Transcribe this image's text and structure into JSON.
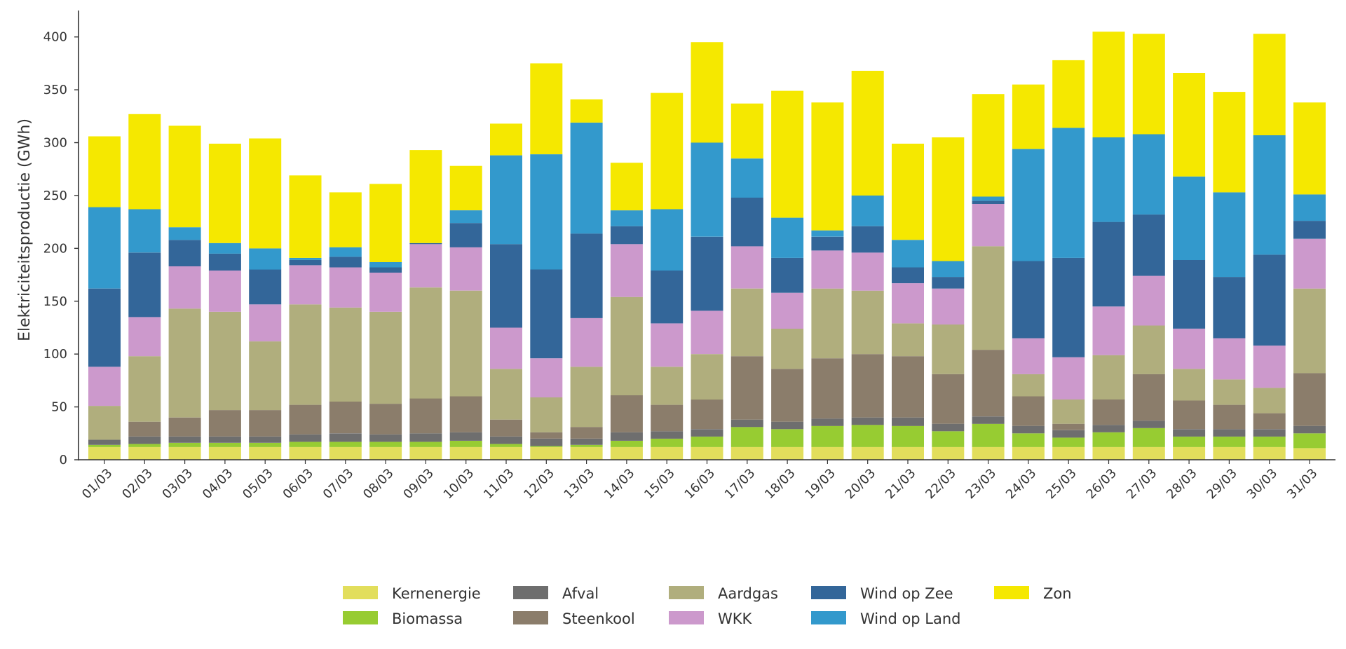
{
  "chart_data": {
    "type": "bar",
    "stacked": true,
    "title": "",
    "xlabel": "",
    "ylabel": "Elektriciteitsproductie (GWh)",
    "ylim": [
      0,
      425
    ],
    "yticks": [
      0,
      50,
      100,
      150,
      200,
      250,
      300,
      350,
      400
    ],
    "grid": false,
    "legend_position": "bottom",
    "categories": [
      "01/03",
      "02/03",
      "03/03",
      "04/03",
      "05/03",
      "06/03",
      "07/03",
      "08/03",
      "09/03",
      "10/03",
      "11/03",
      "12/03",
      "13/03",
      "14/03",
      "15/03",
      "16/03",
      "17/03",
      "18/03",
      "19/03",
      "20/03",
      "21/03",
      "22/03",
      "23/03",
      "24/03",
      "25/03",
      "26/03",
      "27/03",
      "28/03",
      "29/03",
      "30/03",
      "31/03"
    ],
    "series": [
      {
        "name": "Kernenergie",
        "color": "#e2de5c",
        "values": [
          12,
          12,
          12,
          12,
          12,
          12,
          12,
          12,
          12,
          12,
          12,
          12,
          12,
          12,
          12,
          12,
          12,
          12,
          12,
          12,
          12,
          12,
          12,
          12,
          12,
          12,
          12,
          12,
          12,
          12,
          11
        ]
      },
      {
        "name": "Biomassa",
        "color": "#97cc32",
        "values": [
          2,
          3,
          4,
          4,
          4,
          5,
          5,
          5,
          5,
          6,
          3,
          1,
          2,
          6,
          8,
          10,
          19,
          17,
          20,
          21,
          20,
          15,
          22,
          13,
          9,
          14,
          18,
          10,
          10,
          10,
          14
        ]
      },
      {
        "name": "Afval",
        "color": "#6e6e6e",
        "values": [
          5,
          7,
          6,
          6,
          6,
          7,
          8,
          7,
          8,
          8,
          7,
          7,
          6,
          8,
          7,
          7,
          7,
          7,
          7,
          7,
          8,
          7,
          7,
          7,
          7,
          7,
          7,
          7,
          7,
          7,
          7
        ]
      },
      {
        "name": "Steenkool",
        "color": "#8b7d6b",
        "values": [
          0,
          14,
          18,
          25,
          25,
          28,
          30,
          29,
          33,
          34,
          16,
          6,
          11,
          35,
          25,
          28,
          60,
          50,
          57,
          60,
          58,
          47,
          63,
          28,
          6,
          24,
          44,
          27,
          23,
          15,
          50
        ]
      },
      {
        "name": "Aardgas",
        "color": "#b0ae7d",
        "values": [
          32,
          62,
          103,
          93,
          65,
          95,
          89,
          87,
          105,
          100,
          48,
          33,
          57,
          93,
          36,
          43,
          64,
          38,
          66,
          60,
          31,
          47,
          98,
          21,
          23,
          42,
          46,
          30,
          24,
          24,
          80
        ]
      },
      {
        "name": "WKK",
        "color": "#cc99cc",
        "values": [
          37,
          37,
          40,
          39,
          35,
          37,
          38,
          37,
          41,
          41,
          39,
          37,
          46,
          50,
          41,
          41,
          40,
          34,
          36,
          36,
          38,
          34,
          40,
          34,
          40,
          46,
          47,
          38,
          39,
          40,
          47
        ]
      },
      {
        "name": "Wind op Zee",
        "color": "#336699",
        "values": [
          74,
          61,
          25,
          16,
          33,
          5,
          10,
          5,
          1,
          23,
          79,
          84,
          80,
          17,
          50,
          70,
          46,
          33,
          13,
          25,
          15,
          11,
          3,
          73,
          94,
          80,
          58,
          65,
          58,
          86,
          17
        ]
      },
      {
        "name": "Wind op Land",
        "color": "#3399cc",
        "values": [
          77,
          41,
          12,
          10,
          20,
          2,
          9,
          5,
          0,
          12,
          84,
          109,
          105,
          15,
          58,
          89,
          37,
          38,
          6,
          29,
          26,
          15,
          4,
          106,
          123,
          80,
          76,
          79,
          80,
          113,
          25
        ]
      },
      {
        "name": "Zon",
        "color": "#f5e800",
        "values": [
          67,
          90,
          96,
          94,
          104,
          78,
          52,
          74,
          88,
          42,
          30,
          86,
          22,
          45,
          110,
          95,
          52,
          120,
          121,
          118,
          91,
          117,
          97,
          61,
          64,
          100,
          95,
          98,
          95,
          96,
          87
        ]
      }
    ]
  },
  "legend": {
    "items": [
      {
        "label": "Kernenergie",
        "color": "#e2de5c"
      },
      {
        "label": "Biomassa",
        "color": "#97cc32"
      },
      {
        "label": "Afval",
        "color": "#6e6e6e"
      },
      {
        "label": "Steenkool",
        "color": "#8b7d6b"
      },
      {
        "label": "Aardgas",
        "color": "#b0ae7d"
      },
      {
        "label": "WKK",
        "color": "#cc99cc"
      },
      {
        "label": "Wind op Zee",
        "color": "#336699"
      },
      {
        "label": "Wind op Land",
        "color": "#3399cc"
      },
      {
        "label": "Zon",
        "color": "#f5e800"
      }
    ]
  }
}
